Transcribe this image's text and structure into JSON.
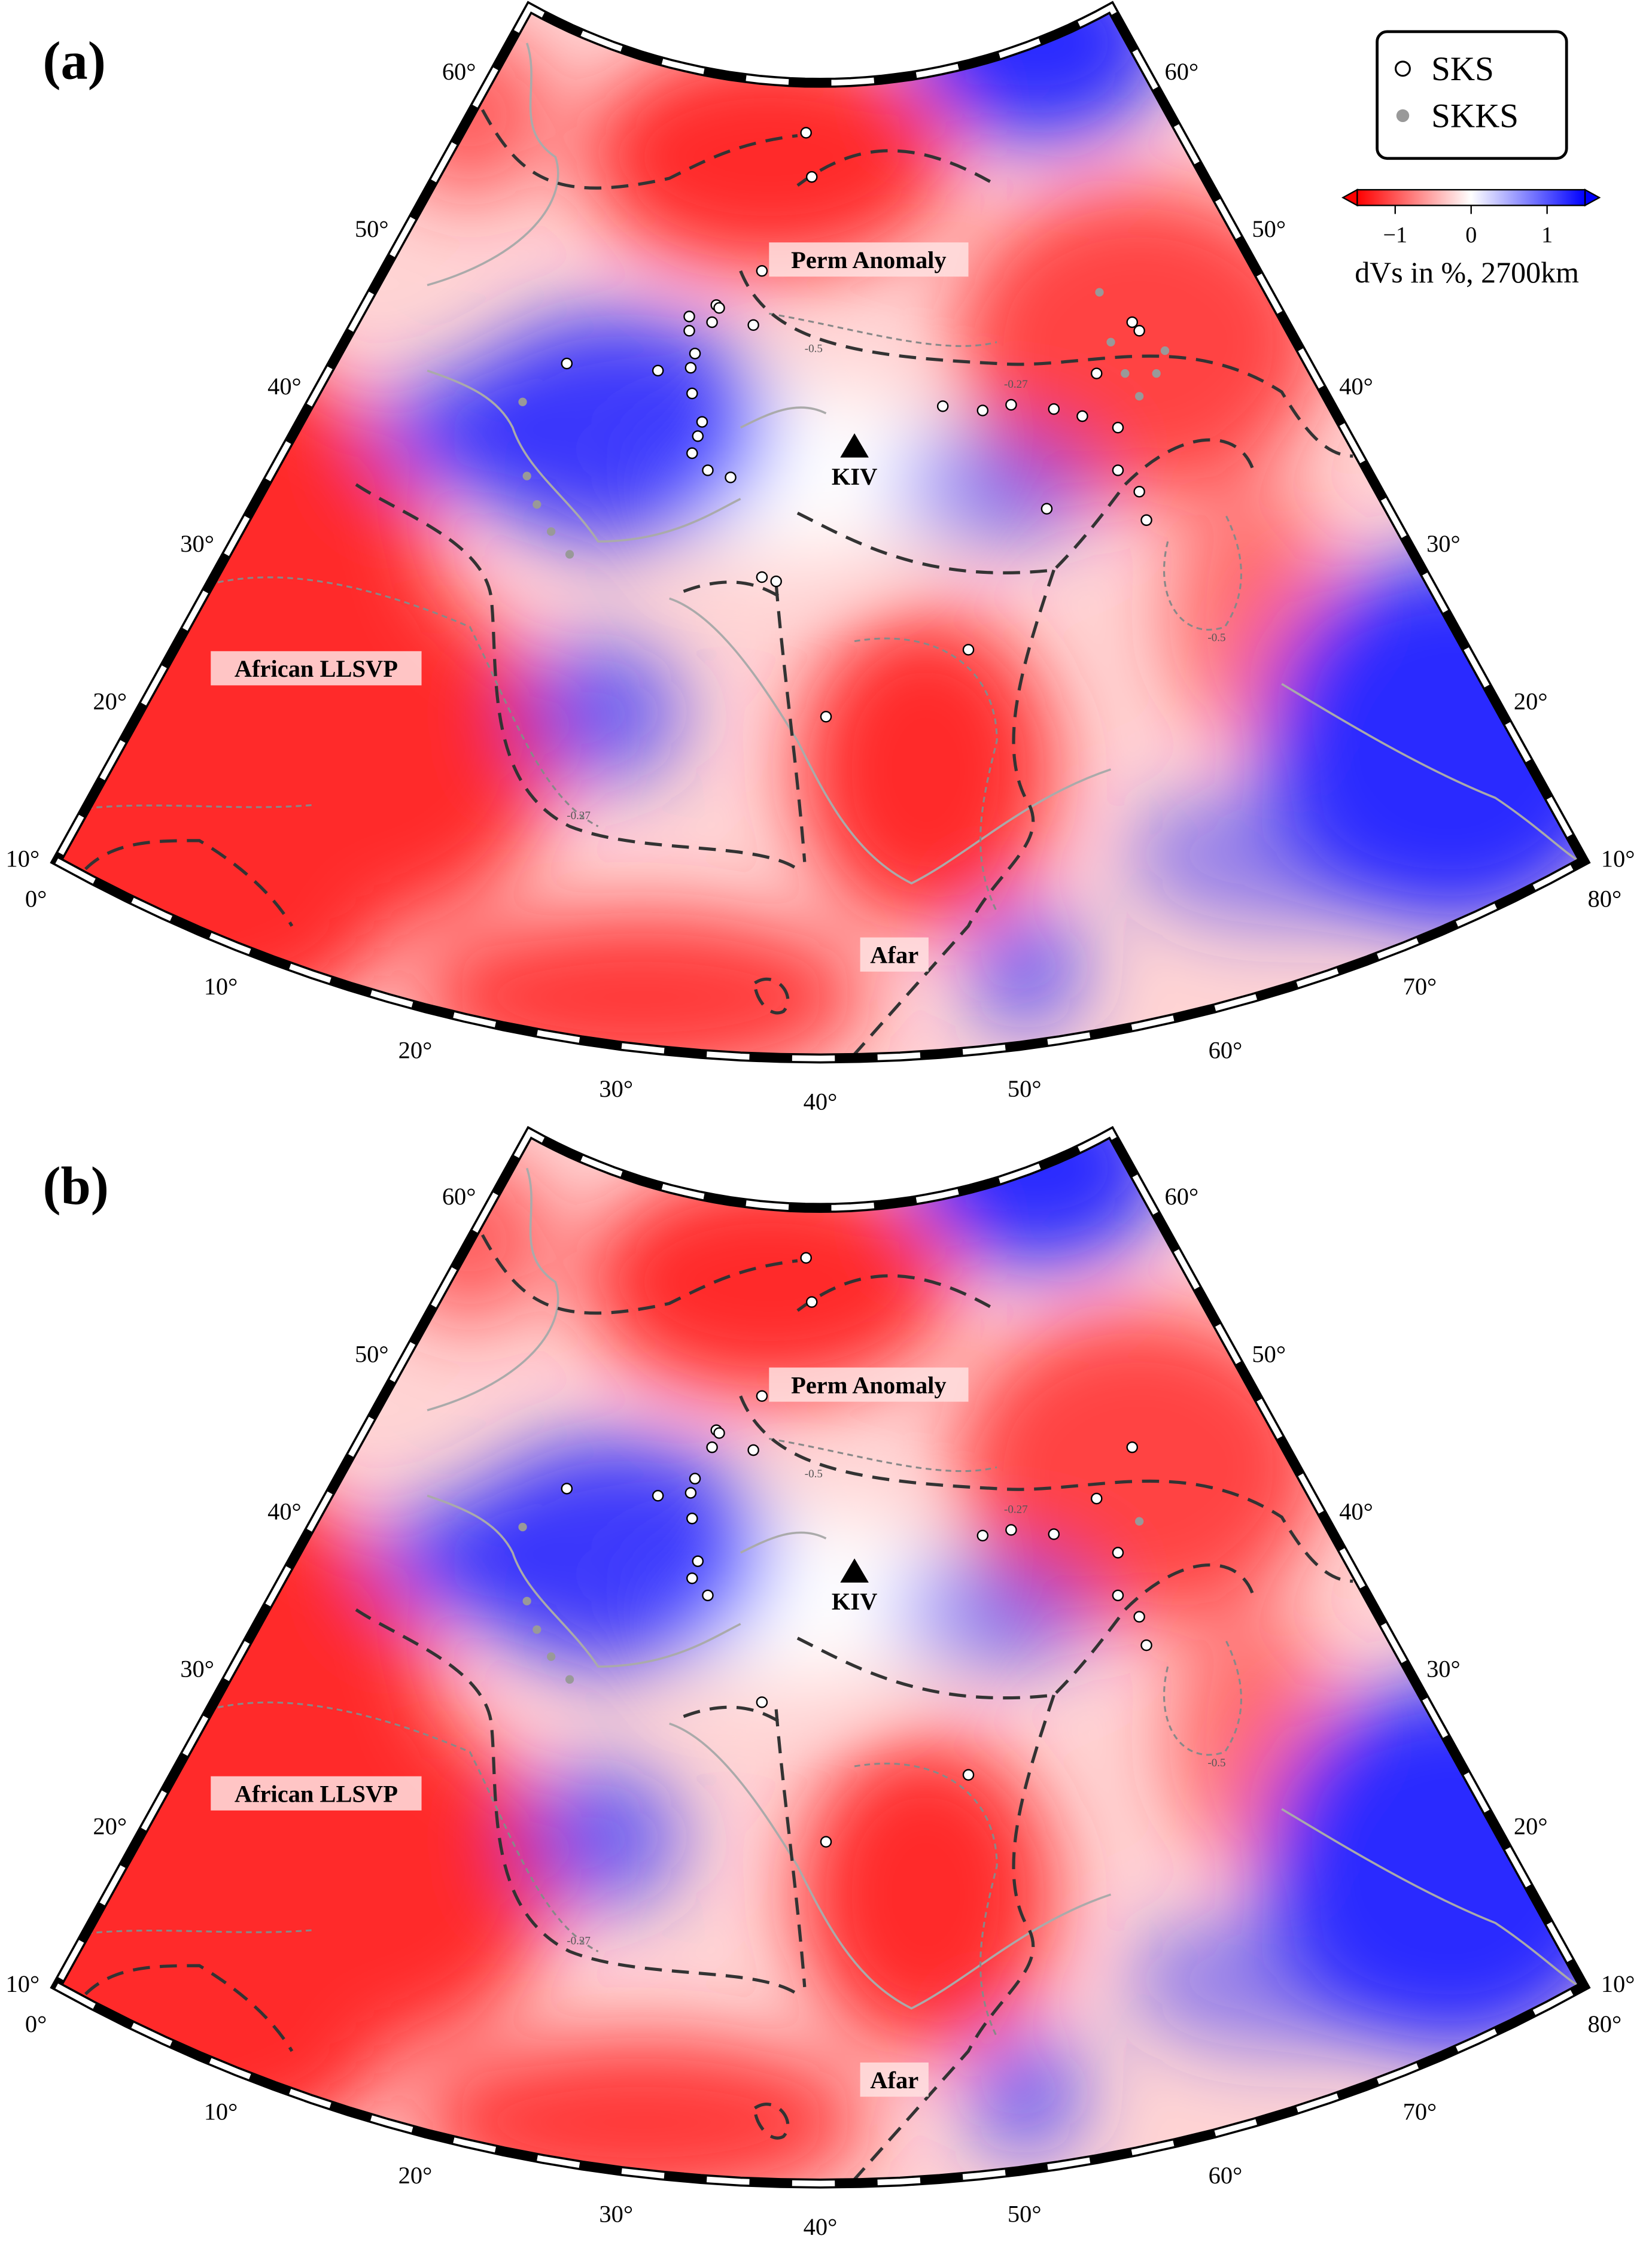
{
  "panels": [
    {
      "label": "(a)"
    },
    {
      "label": "(b)"
    }
  ],
  "map_labels": {
    "perm": "Perm Anomaly",
    "llsvp": "African LLSVP",
    "afar": "Afar",
    "station": "KIV"
  },
  "contour_labels": [
    "-0.27",
    "-0.5"
  ],
  "lat_labels": [
    "10°",
    "20°",
    "30°",
    "40°",
    "50°",
    "60°"
  ],
  "lon_labels": [
    "0°",
    "10°",
    "20°",
    "30°",
    "40°",
    "50°",
    "60°",
    "70°",
    "80°"
  ],
  "legend": {
    "sks": "SKS",
    "skks": "SKKS"
  },
  "colorbar": {
    "title": "dVs in %, 2700km",
    "lim": [
      -1.5,
      1.5
    ],
    "ticks": [
      {
        "value": -1,
        "label": "−1"
      },
      0,
      1
    ]
  }
}
